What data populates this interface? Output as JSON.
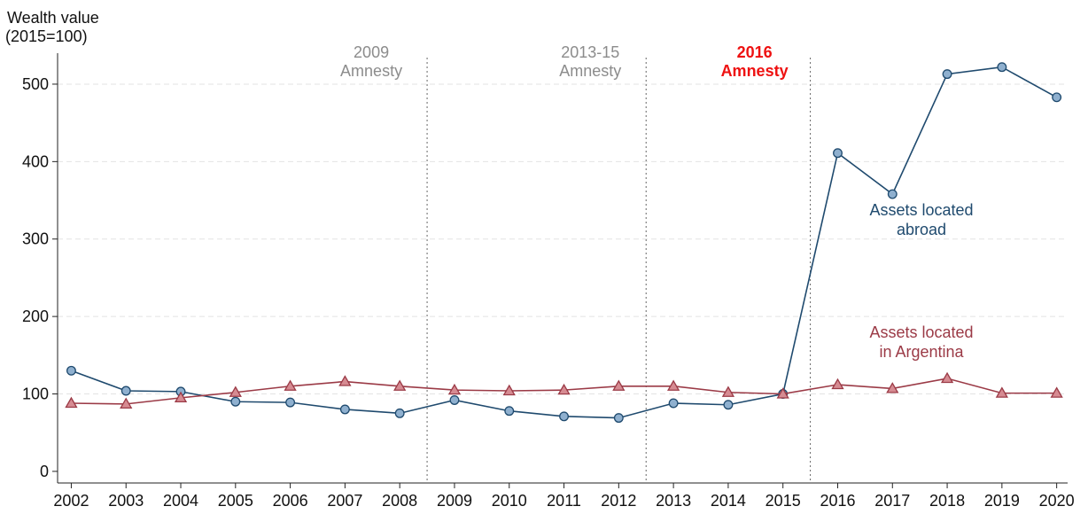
{
  "chart_data": {
    "type": "line",
    "y_label": [
      "Wealth value",
      "(2015=100)"
    ],
    "x": [
      2002,
      2003,
      2004,
      2005,
      2006,
      2007,
      2008,
      2009,
      2010,
      2011,
      2012,
      2013,
      2014,
      2015,
      2016,
      2017,
      2018,
      2019,
      2020
    ],
    "xlim": [
      2001.75,
      2020.2
    ],
    "xticks": [
      2002,
      2003,
      2004,
      2005,
      2006,
      2007,
      2008,
      2009,
      2010,
      2011,
      2012,
      2013,
      2014,
      2015,
      2016,
      2017,
      2018,
      2019,
      2020
    ],
    "ylim": [
      -15,
      540
    ],
    "yticks": [
      0,
      100,
      200,
      300,
      400,
      500
    ],
    "grid": true,
    "series": [
      {
        "label": [
          "Assets located",
          "abroad"
        ],
        "color": "#1f4a6e",
        "marker": "circle",
        "marker_color": "#8fb0cf",
        "values": [
          130,
          104,
          103,
          90,
          89,
          80,
          75,
          92,
          78,
          71,
          69,
          88,
          86,
          100,
          411,
          358,
          513,
          522,
          483
        ]
      },
      {
        "label": [
          "Assets located",
          "in Argentina"
        ],
        "color": "#9b3a46",
        "marker": "triangle",
        "marker_color": "#d68b92",
        "values": [
          88,
          87,
          95,
          102,
          110,
          116,
          110,
          105,
          104,
          105,
          110,
          110,
          102,
          100,
          112,
          107,
          120,
          101,
          101
        ]
      }
    ],
    "vlines": [
      2008.5,
      2012.5,
      2015.5
    ],
    "annotations": [
      {
        "text": [
          "2009",
          "Amnesty"
        ],
        "color": "#8c8c8c",
        "bold": false
      },
      {
        "text": [
          "2013-15",
          "Amnesty"
        ],
        "color": "#8c8c8c",
        "bold": false
      },
      {
        "text": [
          "2016",
          "Amnesty"
        ],
        "color": "#ee1111",
        "bold": true
      }
    ]
  }
}
